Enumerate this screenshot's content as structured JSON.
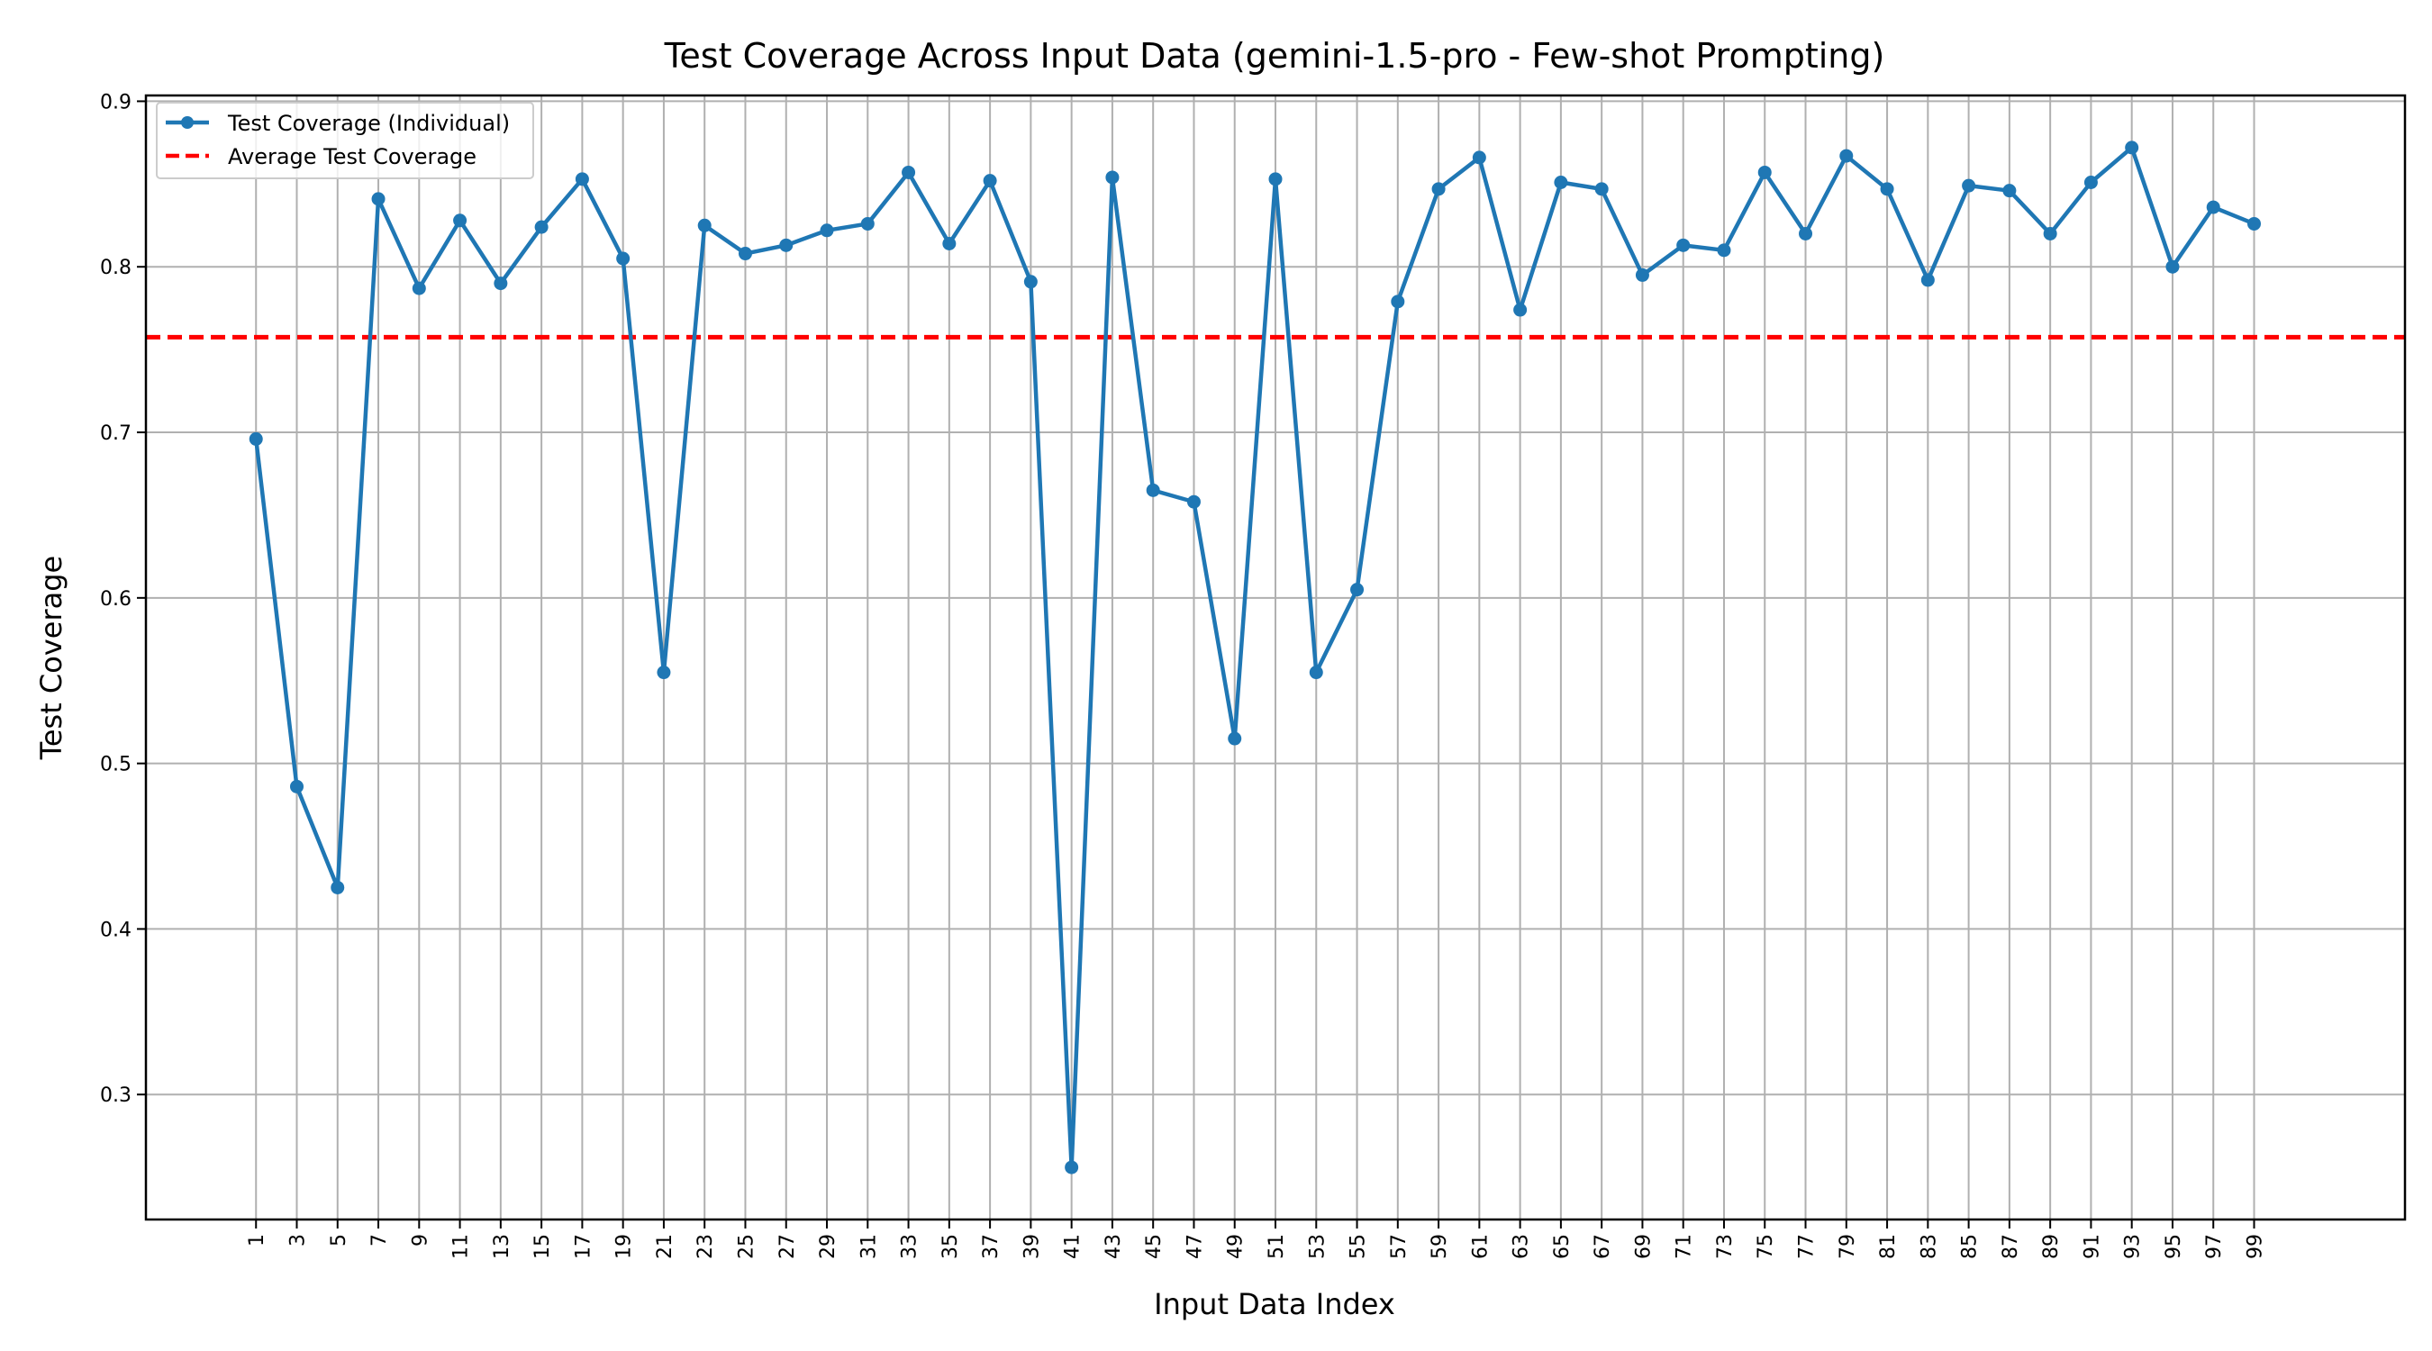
{
  "chart_data": {
    "type": "line",
    "title": "Test Coverage Across Input Data (gemini-1.5-pro - Few-shot Prompting)",
    "xlabel": "Input Data Index",
    "ylabel": "Test Coverage",
    "x": [
      1,
      3,
      5,
      7,
      9,
      11,
      13,
      15,
      17,
      19,
      21,
      23,
      25,
      27,
      29,
      31,
      33,
      35,
      37,
      39,
      41,
      43,
      45,
      47,
      49,
      51,
      53,
      55,
      57,
      59,
      61,
      63,
      65,
      67,
      69,
      71,
      73,
      75,
      77,
      79,
      81,
      83,
      85,
      87,
      89,
      91,
      93,
      95,
      97,
      99
    ],
    "series": [
      {
        "name": "Test Coverage (Individual)",
        "color": "#1f77b4",
        "values": [
          0.696,
          0.486,
          0.425,
          0.841,
          0.787,
          0.828,
          0.79,
          0.824,
          0.853,
          0.805,
          0.555,
          0.825,
          0.808,
          0.813,
          0.822,
          0.826,
          0.857,
          0.814,
          0.852,
          0.791,
          0.256,
          0.854,
          0.665,
          0.658,
          0.515,
          0.853,
          0.555,
          0.605,
          0.779,
          0.847,
          0.866,
          0.774,
          0.851,
          0.847,
          0.795,
          0.813,
          0.81,
          0.857,
          0.82,
          0.867,
          0.847,
          0.792,
          0.849,
          0.846,
          0.82,
          0.851,
          0.872,
          0.8,
          0.836,
          0.826
        ]
      }
    ],
    "reference_line": {
      "name": "Average Test Coverage",
      "color": "#ff0000",
      "value": 0.7575,
      "style": "dashed"
    },
    "xlim": [
      -4.4,
      106.4
    ],
    "ylim": [
      0.2245,
      0.9035
    ],
    "yticks": [
      0.3,
      0.4,
      0.5,
      0.6,
      0.7,
      0.8,
      0.9
    ],
    "ytick_labels": [
      "0.3",
      "0.4",
      "0.5",
      "0.6",
      "0.7",
      "0.8",
      "0.9"
    ],
    "xtick_labels": [
      "1",
      "3",
      "5",
      "7",
      "9",
      "11",
      "13",
      "15",
      "17",
      "19",
      "21",
      "23",
      "25",
      "27",
      "29",
      "31",
      "33",
      "35",
      "37",
      "39",
      "41",
      "43",
      "45",
      "47",
      "49",
      "51",
      "53",
      "55",
      "57",
      "59",
      "61",
      "63",
      "65",
      "67",
      "69",
      "71",
      "73",
      "75",
      "77",
      "79",
      "81",
      "83",
      "85",
      "87",
      "89",
      "91",
      "93",
      "95",
      "97",
      "99"
    ],
    "grid": true,
    "legend_position": "top-left"
  }
}
